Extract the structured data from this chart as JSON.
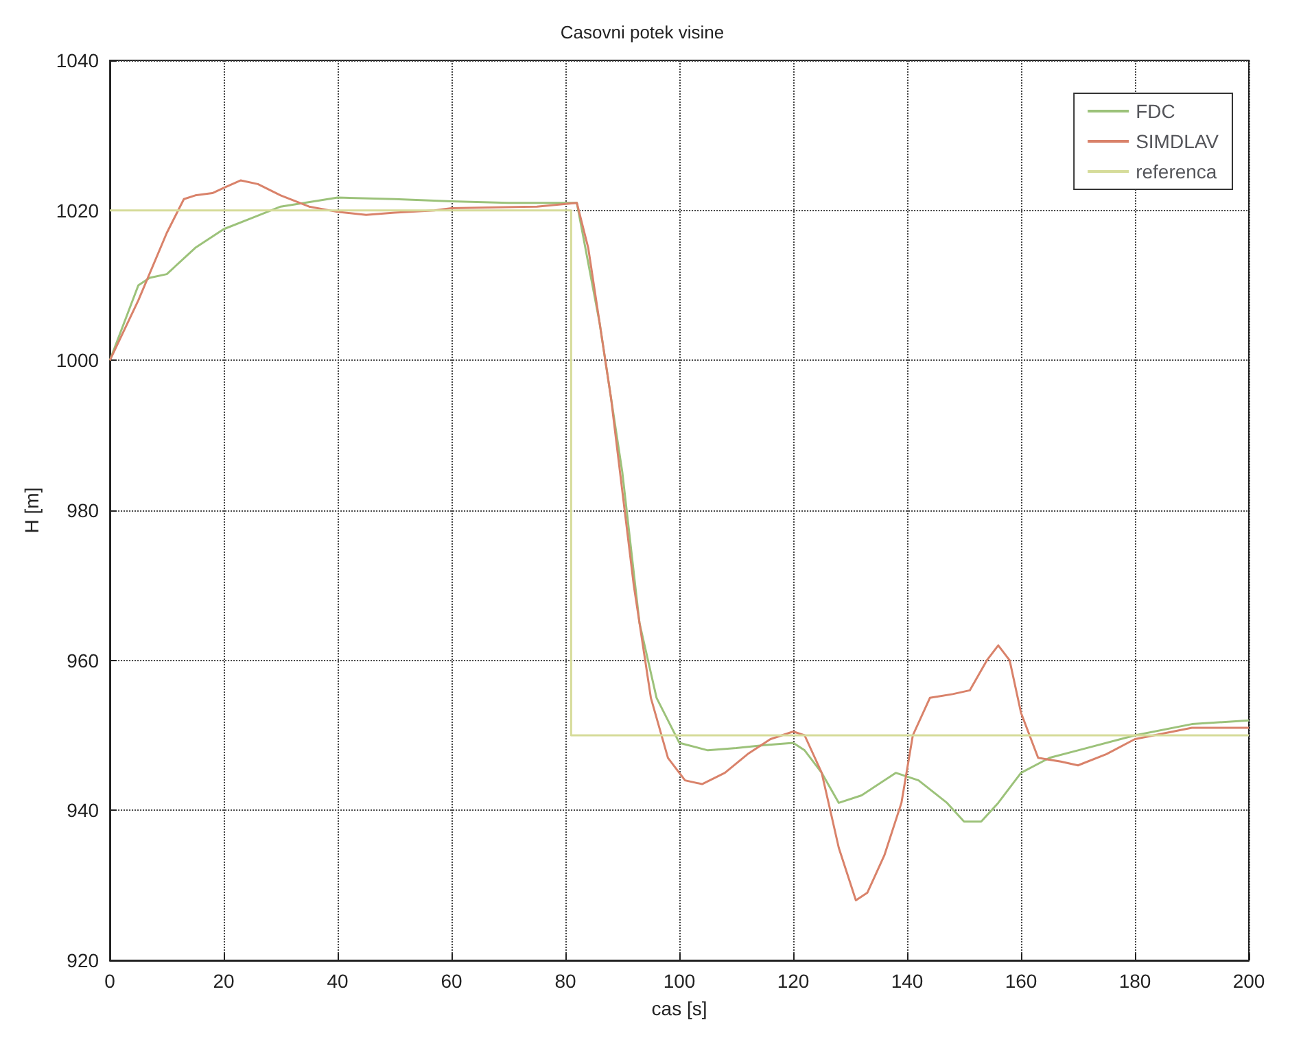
{
  "chart_data": {
    "type": "line",
    "title": "Casovni potek visine",
    "xlabel": "cas [s]",
    "ylabel": "H [m]",
    "xlim": [
      0,
      200
    ],
    "xticks": [
      0,
      20,
      40,
      60,
      80,
      100,
      120,
      140,
      160,
      180,
      200
    ],
    "ylim": [
      920,
      1040
    ],
    "yticks": [
      920,
      940,
      960,
      980,
      1000,
      1020,
      1040
    ],
    "grid": true,
    "legend": "top right",
    "marker": "none",
    "line_style": "solid",
    "series": [
      {
        "name": "FDC",
        "color": "#9cc27a",
        "x": [
          0,
          3,
          5,
          7,
          10,
          15,
          20,
          25,
          30,
          40,
          50,
          60,
          70,
          82,
          86,
          90,
          93,
          96,
          100,
          105,
          110,
          115,
          120,
          122,
          125,
          128,
          132,
          138,
          142,
          147,
          150,
          153,
          156,
          160,
          165,
          170,
          180,
          190,
          200
        ],
        "values": [
          1000,
          1006,
          1010,
          1011,
          1011.5,
          1015,
          1017.5,
          1019,
          1020.5,
          1021.7,
          1021.5,
          1021.2,
          1021,
          1021,
          1005,
          985,
          965,
          955,
          949,
          948,
          948.3,
          948.7,
          949,
          948,
          945,
          941,
          942,
          945,
          944,
          941,
          938.5,
          938.5,
          941,
          945,
          947,
          948,
          950,
          951.5,
          952
        ]
      },
      {
        "name": "SIMDLAV",
        "color": "#d9826a",
        "x": [
          0,
          5,
          10,
          13,
          15,
          18,
          20,
          23,
          26,
          30,
          35,
          40,
          45,
          50,
          57,
          60,
          75,
          82,
          84,
          88,
          92,
          95,
          98,
          101,
          104,
          108,
          112,
          116,
          120,
          122,
          125,
          128,
          131,
          133,
          136,
          139,
          141,
          144,
          148,
          151,
          154,
          156,
          158,
          160,
          163,
          167,
          170,
          175,
          180,
          190,
          200
        ],
        "values": [
          1000,
          1008,
          1017,
          1021.5,
          1022,
          1022.3,
          1023,
          1024,
          1023.5,
          1022,
          1020.5,
          1019.8,
          1019.4,
          1019.7,
          1020,
          1020.3,
          1020.5,
          1021,
          1015,
          995,
          970,
          955,
          947,
          944,
          943.5,
          945,
          947.5,
          949.5,
          950.5,
          950,
          945,
          935,
          928,
          929,
          934,
          941,
          950,
          955,
          955.5,
          956,
          960,
          962,
          960,
          953,
          947,
          946.5,
          946,
          947.5,
          949.5,
          951,
          951
        ]
      },
      {
        "name": "referenca",
        "color": "#d6dc9a",
        "x": [
          0,
          81,
          81,
          200
        ],
        "values": [
          1020,
          1020,
          950,
          950
        ]
      }
    ]
  }
}
